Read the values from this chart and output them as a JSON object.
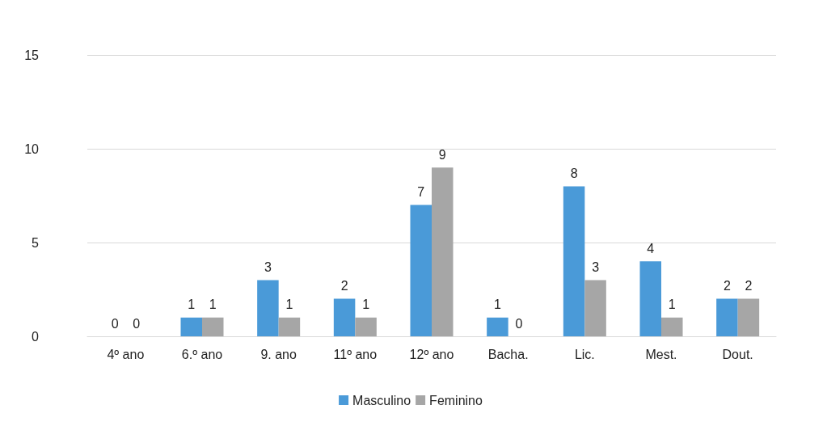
{
  "chart_data": {
    "type": "bar",
    "categories": [
      "4º ano",
      "6.º ano",
      "9. ano",
      "11º ano",
      "12º ano",
      "Bacha.",
      "Lic.",
      "Mest.",
      "Dout."
    ],
    "series": [
      {
        "name": "Masculino",
        "color": "#4a9ad8",
        "values": [
          0,
          1,
          3,
          2,
          7,
          1,
          8,
          4,
          2
        ]
      },
      {
        "name": "Feminino",
        "color": "#a6a6a6",
        "values": [
          0,
          1,
          1,
          1,
          9,
          0,
          3,
          1,
          2
        ]
      }
    ],
    "ylim": [
      0,
      15
    ],
    "yticks": [
      0,
      5,
      10,
      15
    ],
    "grid": "y",
    "legend": "bottom",
    "data_labels": true
  }
}
